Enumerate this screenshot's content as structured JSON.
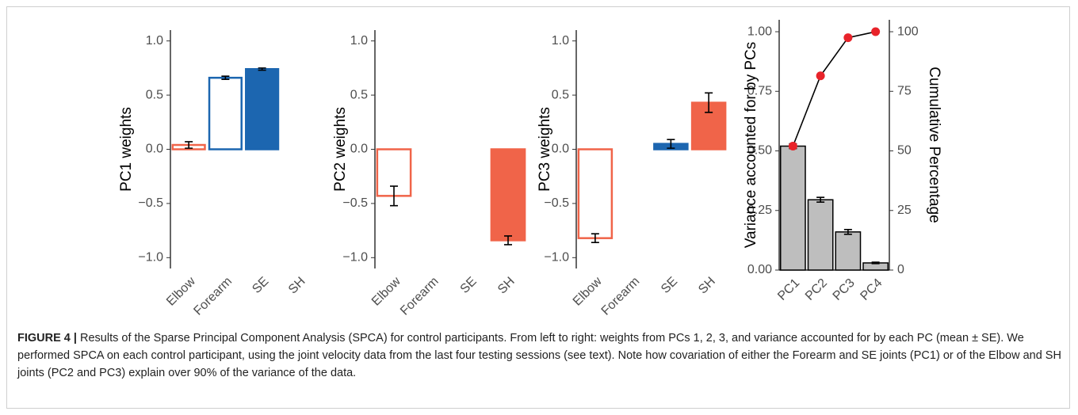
{
  "chart_data": [
    {
      "type": "bar",
      "y_label": "PC1 weights",
      "categories": [
        "Elbow",
        "Forearm",
        "SE",
        "SH"
      ],
      "values": [
        0.04,
        0.66,
        0.74,
        0.0
      ],
      "errors": [
        0.03,
        0.015,
        0.01,
        0.0
      ],
      "colors": [
        "#f06449",
        "#1c66b0",
        "#1c66b0",
        "#f06449"
      ],
      "filled": [
        false,
        false,
        true,
        true
      ],
      "ylim": [
        -1.1,
        1.1
      ],
      "yticks": [
        {
          "value": -1,
          "label": "−1.0"
        },
        {
          "value": -0.5,
          "label": "−0.5"
        },
        {
          "value": 0,
          "label": "0.0"
        },
        {
          "value": 0.5,
          "label": "0.5"
        },
        {
          "value": 1,
          "label": "1.0"
        }
      ]
    },
    {
      "type": "bar",
      "y_label": "PC2 weights",
      "categories": [
        "Elbow",
        "Forearm",
        "SE",
        "SH"
      ],
      "values": [
        -0.43,
        0.0,
        0.0,
        -0.84
      ],
      "errors": [
        0.09,
        0.0,
        0.0,
        0.04
      ],
      "colors": [
        "#f06449",
        "#1c66b0",
        "#1c66b0",
        "#f06449"
      ],
      "filled": [
        false,
        false,
        true,
        true
      ],
      "ylim": [
        -1.1,
        1.1
      ],
      "yticks": [
        {
          "value": -1,
          "label": "−1.0"
        },
        {
          "value": -0.5,
          "label": "−0.5"
        },
        {
          "value": 0,
          "label": "0.0"
        },
        {
          "value": 0.5,
          "label": "0.5"
        },
        {
          "value": 1,
          "label": "1.0"
        }
      ]
    },
    {
      "type": "bar",
      "y_label": "PC3 weights",
      "categories": [
        "Elbow",
        "Forearm",
        "SE",
        "SH"
      ],
      "values": [
        -0.82,
        0.0,
        0.05,
        0.43
      ],
      "errors": [
        0.04,
        0.0,
        0.04,
        0.09
      ],
      "colors": [
        "#f06449",
        "#1c66b0",
        "#1c66b0",
        "#f06449"
      ],
      "filled": [
        false,
        false,
        true,
        true
      ],
      "ylim": [
        -1.1,
        1.1
      ],
      "yticks": [
        {
          "value": -1,
          "label": "−1.0"
        },
        {
          "value": -0.5,
          "label": "−0.5"
        },
        {
          "value": 0,
          "label": "0.0"
        },
        {
          "value": 0.5,
          "label": "0.5"
        },
        {
          "value": 1,
          "label": "1.0"
        }
      ]
    },
    {
      "type": "combo",
      "y_label": "Variance accounted for by PCs",
      "y2_label": "Cumulative Percentage",
      "categories": [
        "PC1",
        "PC2",
        "PC3",
        "PC4"
      ],
      "series": [
        {
          "values": [
            0.52,
            0.295,
            0.16,
            0.03
          ],
          "errors": [
            0.01,
            0.01,
            0.01,
            0.003
          ],
          "color": "#bebebe"
        },
        {
          "values": [
            52,
            81.5,
            97.5,
            100
          ],
          "axis": "y2",
          "color": "#e8232a"
        }
      ],
      "ylim": [
        0,
        1.05
      ],
      "yticks": [
        {
          "value": 0,
          "label": "0.00"
        },
        {
          "value": 0.25,
          "label": "0.25"
        },
        {
          "value": 0.5,
          "label": "0.50"
        },
        {
          "value": 0.75,
          "label": "0.75"
        },
        {
          "value": 1,
          "label": "1.00"
        }
      ],
      "y2lim": [
        0,
        105
      ],
      "y2ticks": [
        0,
        25,
        50,
        75,
        100
      ]
    }
  ],
  "caption": {
    "label": "FIGURE 4 |",
    "text": "Results of the Sparse Principal Component Analysis (SPCA) for control participants. From left to right: weights from PCs 1, 2, 3, and variance accounted for by each PC (mean ± SE). We performed SPCA on each control participant, using the joint velocity data from the last four testing sessions (see text). Note how covariation of either the Forearm and SE joints (PC1) or of the Elbow and SH joints (PC2 and PC3) explain over 90% of the variance of the data."
  }
}
